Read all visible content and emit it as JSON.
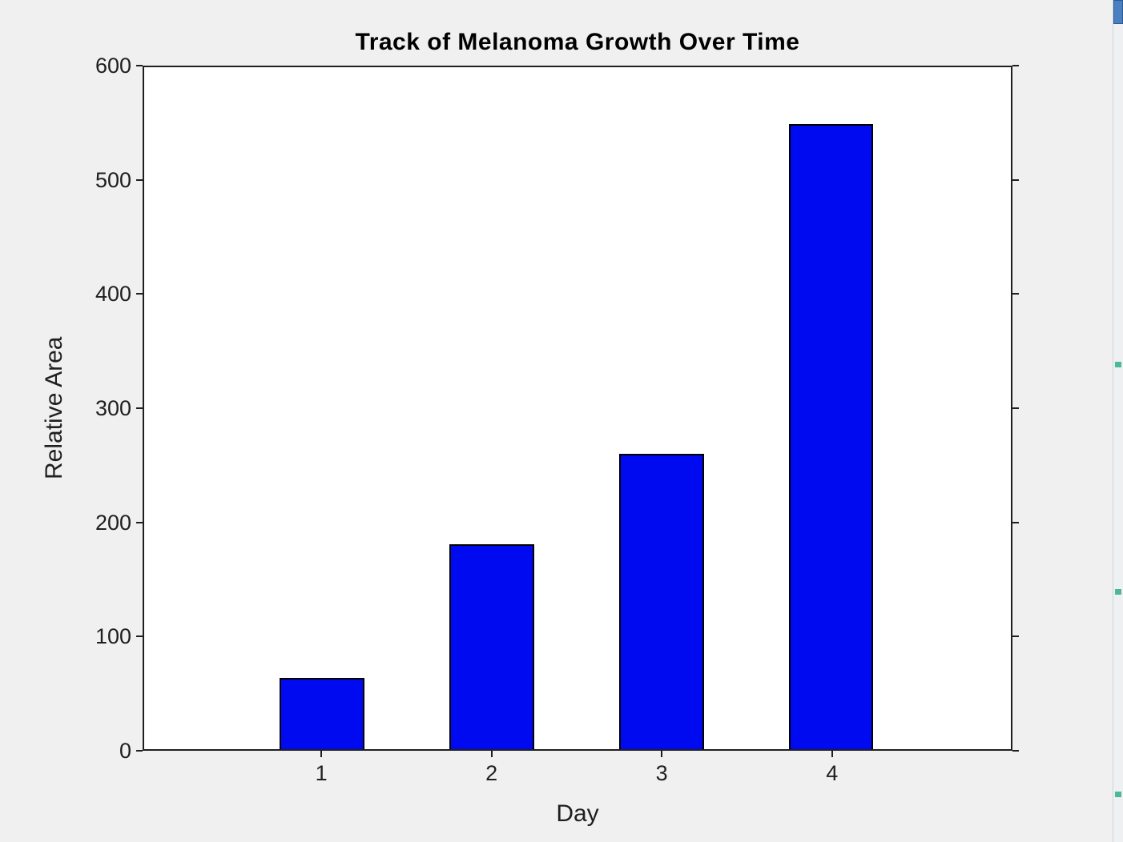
{
  "chart_data": {
    "type": "bar",
    "title": "Track of Melanoma Growth Over Time",
    "xlabel": "Day",
    "ylabel": "Relative Area",
    "categories": [
      "1",
      "2",
      "3",
      "4"
    ],
    "x": [
      1,
      2,
      3,
      4
    ],
    "values": [
      63,
      180,
      260,
      550
    ],
    "ylim": [
      0,
      600
    ],
    "xlim": [
      -0.05,
      5.06
    ],
    "y_ticks": [
      0,
      100,
      200,
      300,
      400,
      500,
      600
    ],
    "bar_width_units": 0.5,
    "bar_color": "#000af0",
    "bar_edge_color": "#000000",
    "axis_color": "#1f1f1f",
    "plot_bg": "#ffffff",
    "figure_bg": "#f0f0f0",
    "grid": false,
    "legend": null
  },
  "scrollbar": {
    "top_block_color": "#4a7fc1",
    "top_block_border": "#2d5a94",
    "marker_color": "#49b89b",
    "markers_pct": [
      43,
      70,
      94
    ]
  }
}
